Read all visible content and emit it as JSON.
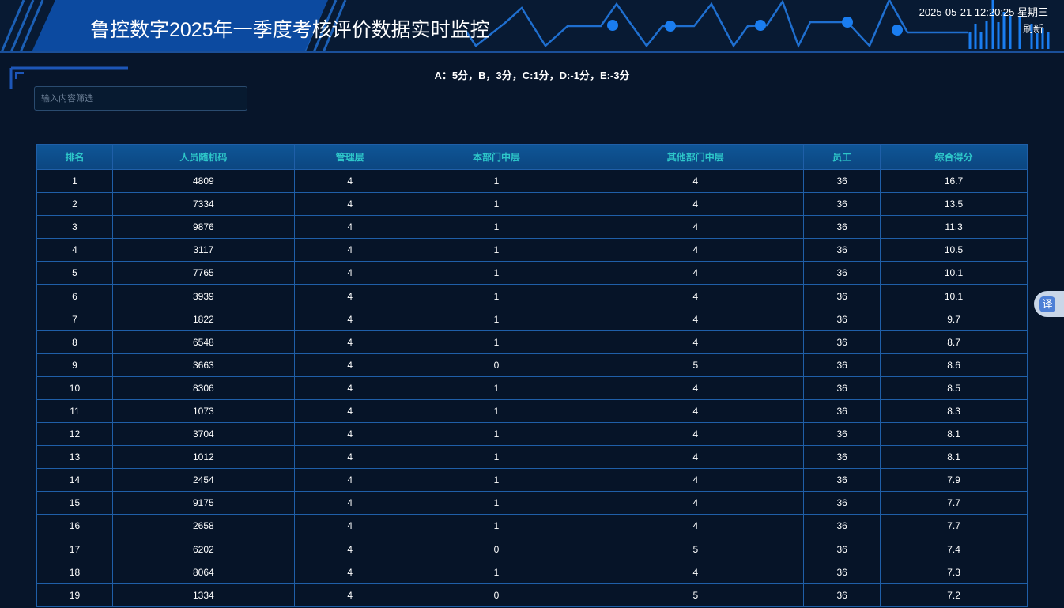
{
  "header": {
    "title": "鲁控数字2025年一季度考核评价数据实时监控",
    "datetime": "2025-05-21 12:20:25 星期三",
    "refresh_label": "刷新"
  },
  "legend": "A：5分，B，3分，C:1分，D:-1分，E:-3分",
  "filter": {
    "placeholder": "输入内容筛选",
    "value": ""
  },
  "translate_label": "译",
  "table": {
    "columns": [
      "排名",
      "人员随机码",
      "管理层",
      "本部门中层",
      "其他部门中层",
      "员工",
      "综合得分"
    ],
    "rows": [
      [
        "1",
        "4809",
        "4",
        "1",
        "4",
        "36",
        "16.7"
      ],
      [
        "2",
        "7334",
        "4",
        "1",
        "4",
        "36",
        "13.5"
      ],
      [
        "3",
        "9876",
        "4",
        "1",
        "4",
        "36",
        "11.3"
      ],
      [
        "4",
        "3117",
        "4",
        "1",
        "4",
        "36",
        "10.5"
      ],
      [
        "5",
        "7765",
        "4",
        "1",
        "4",
        "36",
        "10.1"
      ],
      [
        "6",
        "3939",
        "4",
        "1",
        "4",
        "36",
        "10.1"
      ],
      [
        "7",
        "1822",
        "4",
        "1",
        "4",
        "36",
        "9.7"
      ],
      [
        "8",
        "6548",
        "4",
        "1",
        "4",
        "36",
        "8.7"
      ],
      [
        "9",
        "3663",
        "4",
        "0",
        "5",
        "36",
        "8.6"
      ],
      [
        "10",
        "8306",
        "4",
        "1",
        "4",
        "36",
        "8.5"
      ],
      [
        "11",
        "1073",
        "4",
        "1",
        "4",
        "36",
        "8.3"
      ],
      [
        "12",
        "3704",
        "4",
        "1",
        "4",
        "36",
        "8.1"
      ],
      [
        "13",
        "1012",
        "4",
        "1",
        "4",
        "36",
        "8.1"
      ],
      [
        "14",
        "2454",
        "4",
        "1",
        "4",
        "36",
        "7.9"
      ],
      [
        "15",
        "9175",
        "4",
        "1",
        "4",
        "36",
        "7.7"
      ],
      [
        "16",
        "2658",
        "4",
        "1",
        "4",
        "36",
        "7.7"
      ],
      [
        "17",
        "6202",
        "4",
        "0",
        "5",
        "36",
        "7.4"
      ],
      [
        "18",
        "8064",
        "4",
        "1",
        "4",
        "36",
        "7.3"
      ],
      [
        "19",
        "1334",
        "4",
        "0",
        "5",
        "36",
        "7.2"
      ]
    ]
  }
}
